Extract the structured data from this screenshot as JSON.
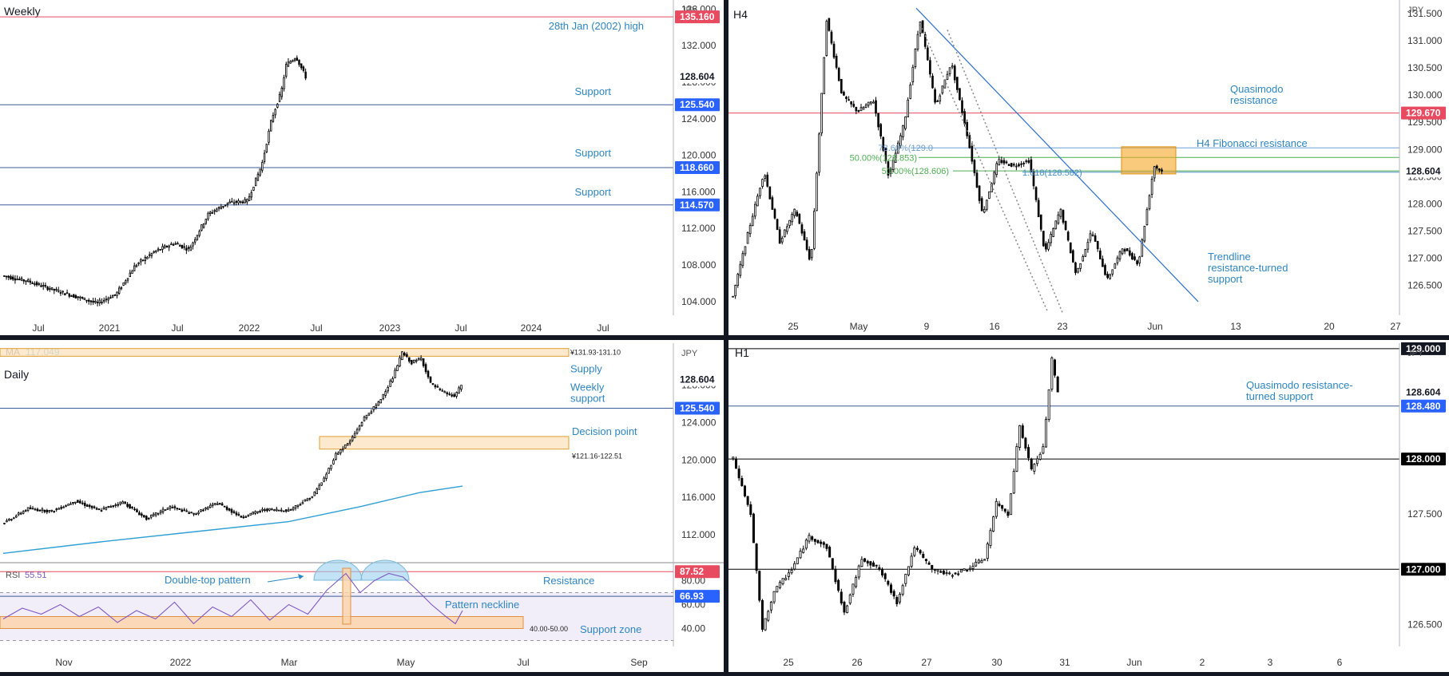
{
  "chart_data": [
    {
      "type": "candlestick",
      "title": "Weekly",
      "unit": "JPY",
      "ylim": [
        102.5,
        137.0
      ],
      "y_ticks": [
        104.0,
        108.0,
        112.0,
        116.0,
        120.0,
        124.0,
        128.0,
        132.0,
        136.0
      ],
      "x_labels": [
        "Jul",
        "2021",
        "Jul",
        "2022",
        "Jul",
        "2023",
        "Jul",
        "2024",
        "Jul"
      ],
      "price_badges": [
        {
          "value": 135.16,
          "text": "135.160",
          "color": "#e84a5f"
        },
        {
          "value": 128.604,
          "text": "128.604",
          "color": "#ffffff"
        },
        {
          "value": 125.54,
          "text": "125.540",
          "color": "#2962ff"
        },
        {
          "value": 118.66,
          "text": "118.660",
          "color": "#2962ff"
        },
        {
          "value": 114.57,
          "text": "114.570",
          "color": "#2962ff"
        }
      ],
      "levels": [
        {
          "value": 135.16,
          "label": "28th Jan (2002) high",
          "color": "#e84a5f"
        },
        {
          "value": 125.54,
          "label": "Support",
          "color": "#3d5a99"
        },
        {
          "value": 118.66,
          "label": "Support",
          "color": "#3d5a99"
        },
        {
          "value": 114.57,
          "label": "Support",
          "color": "#3d5a99"
        }
      ],
      "series_path": [
        [
          0,
          106.8
        ],
        [
          5,
          106.2
        ],
        [
          10,
          105.3
        ],
        [
          15,
          104.5
        ],
        [
          19,
          103.8
        ],
        [
          23,
          104.8
        ],
        [
          27,
          108
        ],
        [
          31,
          109.5
        ],
        [
          35,
          110.4
        ],
        [
          38,
          109.7
        ],
        [
          42,
          113.6
        ],
        [
          46,
          114.8
        ],
        [
          50,
          115.0
        ],
        [
          53,
          119
        ],
        [
          55,
          124
        ],
        [
          57,
          127
        ],
        [
          58,
          129.9
        ],
        [
          60,
          130.8
        ],
        [
          62,
          128.6
        ]
      ],
      "x_points": 140
    },
    {
      "type": "candlestick",
      "title": "H4",
      "unit": "JPY",
      "ylim": [
        125.95,
        131.75
      ],
      "y_ticks": [
        126.0,
        126.5,
        127.0,
        127.5,
        128.0,
        128.5,
        129.0,
        129.5,
        130.0,
        130.5,
        131.0,
        131.5
      ],
      "x_labels": [
        "25",
        "May",
        "9",
        "16",
        "23",
        "Jun",
        "13",
        "20",
        "27"
      ],
      "price_badges": [
        {
          "value": 129.67,
          "text": "129.670",
          "color": "#e84a5f"
        },
        {
          "value": 128.604,
          "text": "128.604",
          "color": "#ffffff"
        }
      ],
      "levels": [
        {
          "value": 129.67,
          "label": "Quasimodo resistance",
          "color": "#e84a5f"
        }
      ],
      "annotations": {
        "fib_label": "H4 Fibonacci resistance",
        "fib_levels": [
          {
            "text": "78.60%(129.0",
            "value": 129.03,
            "color": "#6a9fd4"
          },
          {
            "text": "50.00%(128.853)",
            "value": 128.853,
            "color": "#4caf50"
          },
          {
            "text": "50.00%(128.606)",
            "value": 128.606,
            "color": "#4caf50"
          },
          {
            "text": "1.618(128.582)",
            "value": 128.582,
            "color": "#4a90c8"
          }
        ],
        "zone": {
          "low": 128.55,
          "high": 129.05,
          "color": "#f5a623"
        },
        "trendline_label": "Trendline resistance-turned support",
        "quasimodo_label": "Quasimodo resistance"
      },
      "series_path": [
        [
          0,
          126.3
        ],
        [
          4,
          127.5
        ],
        [
          8,
          128.6
        ],
        [
          12,
          127.3
        ],
        [
          16,
          127.9
        ],
        [
          20,
          126.9
        ],
        [
          24,
          131.4
        ],
        [
          28,
          130.0
        ],
        [
          32,
          129.7
        ],
        [
          36,
          129.9
        ],
        [
          40,
          128.5
        ],
        [
          44,
          129.5
        ],
        [
          48,
          131.4
        ],
        [
          52,
          129.8
        ],
        [
          56,
          130.6
        ],
        [
          60,
          129.3
        ],
        [
          64,
          127.8
        ],
        [
          68,
          128.8
        ],
        [
          72,
          128.7
        ],
        [
          76,
          128.8
        ],
        [
          80,
          127.1
        ],
        [
          84,
          127.9
        ],
        [
          88,
          126.7
        ],
        [
          92,
          127.5
        ],
        [
          96,
          126.6
        ],
        [
          100,
          127.2
        ],
        [
          104,
          126.9
        ],
        [
          108,
          128.7
        ],
        [
          110,
          128.6
        ]
      ],
      "x_points": 175
    },
    {
      "type": "candlestick",
      "title": "Daily",
      "unit": "JPY",
      "ylim": [
        109.0,
        132.5
      ],
      "y_ticks": [
        112.0,
        116.0,
        120.0,
        124.0,
        128.0
      ],
      "x_labels": [
        "Nov",
        "2022",
        "Mar",
        "May",
        "Jul",
        "Sep"
      ],
      "price_badges": [
        {
          "value": 128.604,
          "text": "128.604",
          "color": "#ffffff"
        },
        {
          "value": 125.54,
          "text": "125.540",
          "color": "#2962ff"
        }
      ],
      "ma_label": "MA",
      "ma_value": "117.049",
      "zones": [
        {
          "low": 131.1,
          "high": 131.93,
          "label": "Supply",
          "range_text": "¥131.93-131.10"
        },
        {
          "low": 121.16,
          "high": 122.51,
          "label": "Decision point",
          "range_text": "¥121.16-122.51"
        }
      ],
      "levels": [
        {
          "value": 125.54,
          "label": "Weekly support",
          "color": "#3d5a99"
        }
      ],
      "series_path": [
        [
          0,
          113.3
        ],
        [
          10,
          114.8
        ],
        [
          20,
          114.5
        ],
        [
          30,
          115.6
        ],
        [
          40,
          114.6
        ],
        [
          50,
          115.5
        ],
        [
          60,
          113.7
        ],
        [
          70,
          115.0
        ],
        [
          80,
          114.2
        ],
        [
          90,
          115.4
        ],
        [
          100,
          113.9
        ],
        [
          110,
          114.7
        ],
        [
          120,
          114.6
        ],
        [
          130,
          116.1
        ],
        [
          135,
          118
        ],
        [
          140,
          120.6
        ],
        [
          146,
          122
        ],
        [
          152,
          124.5
        ],
        [
          158,
          126.1
        ],
        [
          164,
          128.8
        ],
        [
          168,
          131.5
        ],
        [
          172,
          130.4
        ],
        [
          176,
          130.9
        ],
        [
          180,
          128.2
        ],
        [
          185,
          127.3
        ],
        [
          190,
          126.8
        ],
        [
          193,
          128.0
        ]
      ],
      "ma_path": [
        [
          0,
          110.0
        ],
        [
          40,
          111.2
        ],
        [
          80,
          112.3
        ],
        [
          120,
          113.4
        ],
        [
          150,
          115.0
        ],
        [
          175,
          116.5
        ],
        [
          193,
          117.2
        ]
      ],
      "x_points": 194
    },
    {
      "type": "oscillator",
      "title": "RSI",
      "value_text": "55.51",
      "ylim": [
        25,
        95
      ],
      "y_ticks": [
        40.0,
        60.0,
        80.0
      ],
      "price_badges": [
        {
          "value": 87.52,
          "text": "87.52",
          "color": "#e84a5f"
        },
        {
          "value": 66.93,
          "text": "66.93",
          "color": "#2962ff"
        }
      ],
      "bands": {
        "upper": 70,
        "lower": 30
      },
      "resistance": {
        "value": 87.52,
        "label": "Resistance"
      },
      "neckline": {
        "value": 66.93,
        "label": "Pattern neckline"
      },
      "support_zone": {
        "low": 40,
        "high": 50,
        "label": "Support zone",
        "range_text": "40.00-50.00"
      },
      "pattern_label": "Double-top pattern",
      "series_path": [
        [
          0,
          48
        ],
        [
          8,
          57
        ],
        [
          16,
          52
        ],
        [
          24,
          60
        ],
        [
          32,
          50
        ],
        [
          40,
          58
        ],
        [
          48,
          45
        ],
        [
          56,
          55
        ],
        [
          64,
          48
        ],
        [
          72,
          62
        ],
        [
          80,
          44
        ],
        [
          88,
          58
        ],
        [
          96,
          50
        ],
        [
          104,
          64
        ],
        [
          112,
          47
        ],
        [
          120,
          60
        ],
        [
          128,
          52
        ],
        [
          136,
          72
        ],
        [
          144,
          86
        ],
        [
          150,
          70
        ],
        [
          156,
          80
        ],
        [
          162,
          86
        ],
        [
          168,
          83
        ],
        [
          174,
          72
        ],
        [
          180,
          60
        ],
        [
          186,
          50
        ],
        [
          190,
          44
        ],
        [
          193,
          55
        ]
      ]
    },
    {
      "type": "candlestick",
      "title": "H1",
      "unit": "JPY",
      "ylim": [
        126.3,
        129.05
      ],
      "y_ticks": [
        126.5,
        127.0,
        127.5,
        128.0,
        128.5,
        129.0
      ],
      "x_labels": [
        "25",
        "26",
        "27",
        "30",
        "31",
        "Jun",
        "2",
        "3",
        "6"
      ],
      "price_badges": [
        {
          "value": 128.604,
          "text": "128.604",
          "color": "#ffffff"
        },
        {
          "value": 128.48,
          "text": "128.480",
          "color": "#2962ff"
        },
        {
          "value": 128.0,
          "text": "128.000",
          "color": "#000000"
        },
        {
          "value": 127.0,
          "text": "127.000",
          "color": "#000000"
        }
      ],
      "levels": [
        {
          "value": 129.0,
          "label": "",
          "color": "#000000"
        },
        {
          "value": 128.48,
          "label": "Quasimodo resistance-turned support",
          "color": "#3d5a99"
        },
        {
          "value": 128.0,
          "label": "",
          "color": "#000000"
        },
        {
          "value": 127.0,
          "label": "",
          "color": "#000000"
        }
      ],
      "series_path": [
        [
          0,
          128.0
        ],
        [
          6,
          127.5
        ],
        [
          10,
          126.45
        ],
        [
          14,
          126.8
        ],
        [
          20,
          127.0
        ],
        [
          26,
          127.3
        ],
        [
          32,
          127.2
        ],
        [
          38,
          126.6
        ],
        [
          44,
          127.1
        ],
        [
          50,
          127.0
        ],
        [
          56,
          126.7
        ],
        [
          62,
          127.2
        ],
        [
          68,
          127.0
        ],
        [
          74,
          126.95
        ],
        [
          80,
          127.0
        ],
        [
          86,
          127.1
        ],
        [
          90,
          127.6
        ],
        [
          94,
          127.5
        ],
        [
          98,
          128.3
        ],
        [
          102,
          127.9
        ],
        [
          106,
          128.1
        ],
        [
          109,
          128.9
        ],
        [
          111,
          128.6
        ]
      ],
      "x_points": 112
    }
  ]
}
